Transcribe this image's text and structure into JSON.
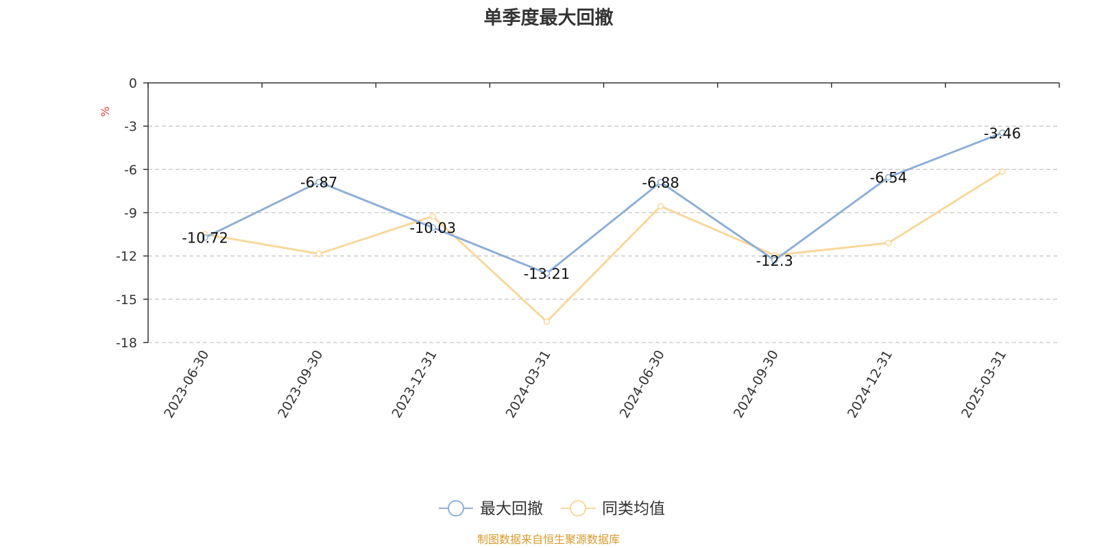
{
  "title": "单季度最大回撤",
  "source": "制图数据来自恒生聚源数据库",
  "chart_data": {
    "type": "line",
    "categories": [
      "2023-06-30",
      "2023-09-30",
      "2023-12-31",
      "2024-03-31",
      "2024-06-30",
      "2024-09-30",
      "2024-12-31",
      "2025-03-31"
    ],
    "series": [
      {
        "name": "最大回撤",
        "values": [
          -10.72,
          -6.87,
          -10.03,
          -13.21,
          -6.88,
          -12.3,
          -6.54,
          -3.46
        ],
        "color": "#8eaed8",
        "data_labels": true
      },
      {
        "name": "同类均值",
        "values": [
          -10.5,
          -11.85,
          -9.25,
          -16.55,
          -8.55,
          -11.95,
          -11.1,
          -6.15
        ],
        "color": "#f8d79a",
        "data_labels": false
      }
    ],
    "ylabel": "%",
    "ylim": [
      -18,
      0
    ],
    "yticks": [
      0,
      -3,
      -6,
      -9,
      -12,
      -15,
      -18
    ],
    "grid": true,
    "legend": "bottom-center"
  }
}
